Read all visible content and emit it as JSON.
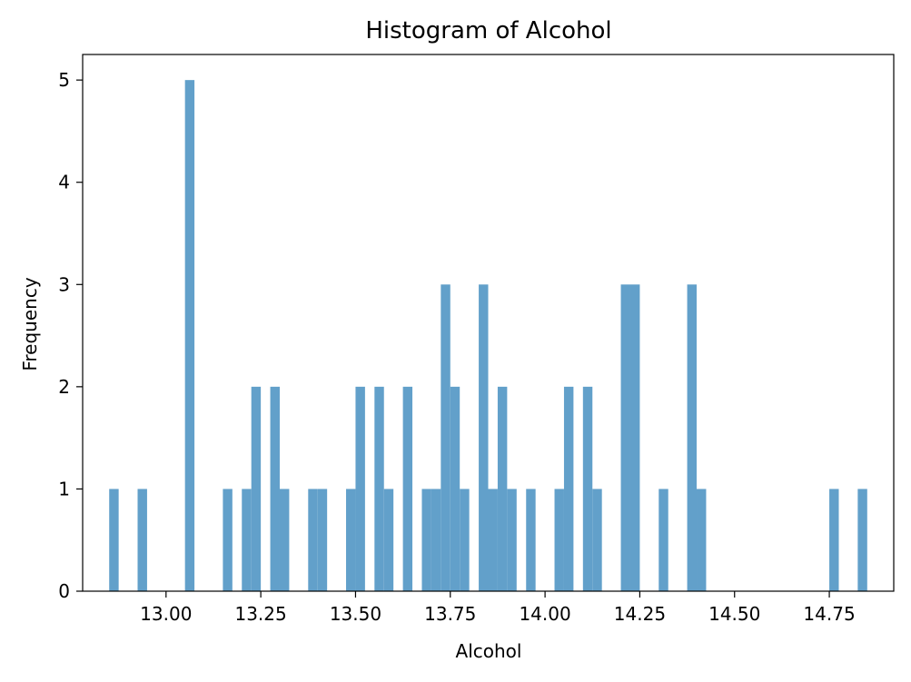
{
  "chart_data": {
    "type": "bar",
    "title": "Histogram of Alcohol",
    "xlabel": "Alcohol",
    "ylabel": "Frequency",
    "xlim": [
      12.78,
      14.92
    ],
    "ylim": [
      0,
      5.25
    ],
    "xticks": [
      "13.00",
      "13.25",
      "13.50",
      "13.75",
      "14.00",
      "14.25",
      "14.50",
      "14.75"
    ],
    "yticks": [
      "0",
      "1",
      "2",
      "3",
      "4",
      "5"
    ],
    "bin_width": 0.025,
    "bins": [
      {
        "x0": 12.85,
        "count": 1
      },
      {
        "x0": 12.925,
        "count": 1
      },
      {
        "x0": 13.05,
        "count": 5
      },
      {
        "x0": 13.15,
        "count": 1
      },
      {
        "x0": 13.2,
        "count": 1
      },
      {
        "x0": 13.225,
        "count": 2
      },
      {
        "x0": 13.275,
        "count": 2
      },
      {
        "x0": 13.3,
        "count": 1
      },
      {
        "x0": 13.375,
        "count": 1
      },
      {
        "x0": 13.4,
        "count": 1
      },
      {
        "x0": 13.475,
        "count": 1
      },
      {
        "x0": 13.5,
        "count": 2
      },
      {
        "x0": 13.55,
        "count": 2
      },
      {
        "x0": 13.575,
        "count": 1
      },
      {
        "x0": 13.625,
        "count": 2
      },
      {
        "x0": 13.675,
        "count": 1
      },
      {
        "x0": 13.7,
        "count": 1
      },
      {
        "x0": 13.725,
        "count": 3
      },
      {
        "x0": 13.75,
        "count": 2
      },
      {
        "x0": 13.775,
        "count": 1
      },
      {
        "x0": 13.825,
        "count": 3
      },
      {
        "x0": 13.85,
        "count": 1
      },
      {
        "x0": 13.875,
        "count": 2
      },
      {
        "x0": 13.9,
        "count": 1
      },
      {
        "x0": 13.95,
        "count": 1
      },
      {
        "x0": 14.025,
        "count": 1
      },
      {
        "x0": 14.05,
        "count": 2
      },
      {
        "x0": 14.1,
        "count": 2
      },
      {
        "x0": 14.125,
        "count": 1
      },
      {
        "x0": 14.2,
        "count": 3
      },
      {
        "x0": 14.225,
        "count": 3
      },
      {
        "x0": 14.3,
        "count": 1
      },
      {
        "x0": 14.375,
        "count": 3
      },
      {
        "x0": 14.4,
        "count": 1
      },
      {
        "x0": 14.75,
        "count": 1
      },
      {
        "x0": 14.825,
        "count": 1
      }
    ],
    "bar_color": "#62a0ca",
    "grid": false,
    "legend": "none"
  }
}
